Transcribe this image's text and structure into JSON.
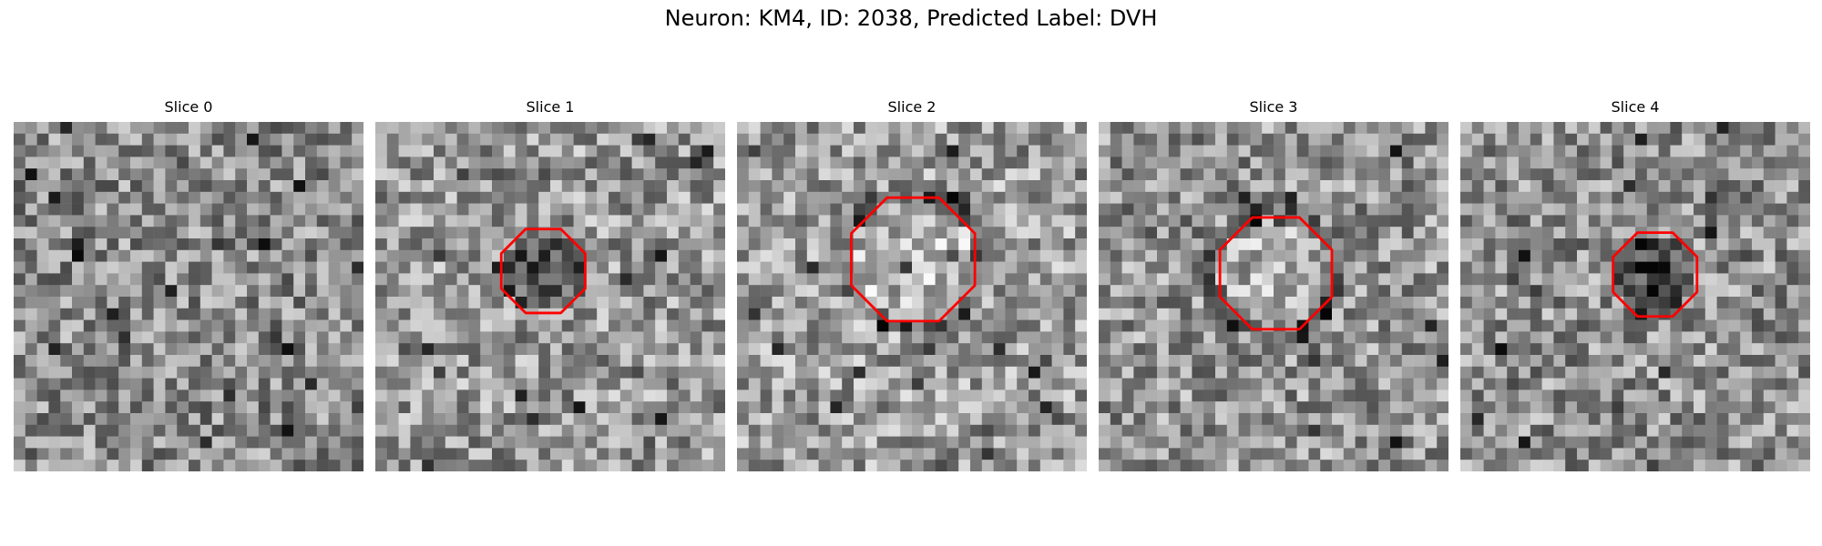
{
  "figure": {
    "title": "Neuron: KM4, ID: 2038, Predicted Label: DVH"
  },
  "colors": {
    "contour": "#ff0000",
    "background": "#ffffff"
  },
  "panels": [
    {
      "title": "Slice 0",
      "has_contour": false,
      "contour_mean_intensity": "none",
      "overall_brightness": 0.55
    },
    {
      "title": "Slice 1",
      "has_contour": true,
      "contour_mean_intensity": "dark",
      "overall_brightness": 0.6
    },
    {
      "title": "Slice 2",
      "has_contour": true,
      "contour_mean_intensity": "bright",
      "overall_brightness": 0.62
    },
    {
      "title": "Slice 3",
      "has_contour": true,
      "contour_mean_intensity": "bright",
      "overall_brightness": 0.58
    },
    {
      "title": "Slice 4",
      "has_contour": true,
      "contour_mean_intensity": "dark",
      "overall_brightness": 0.57
    }
  ]
}
